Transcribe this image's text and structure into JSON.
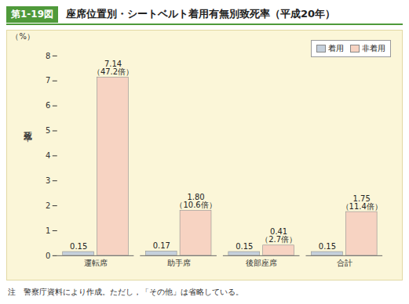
{
  "chart_data": {
    "type": "bar",
    "figure_number": "第1-19図",
    "title": "座席位置別・シートベルト着用有無別致死率（平成20年）",
    "ylabel": "致死率",
    "y_unit": "（%）",
    "categories": [
      "運転席",
      "助手席",
      "後部座席",
      "合計"
    ],
    "series": [
      {
        "name": "着用",
        "color": "#c5d0dc",
        "values": [
          0.15,
          0.17,
          0.15,
          0.15
        ]
      },
      {
        "name": "非着用",
        "color": "#f7d3c2",
        "values": [
          7.14,
          1.8,
          0.41,
          1.75
        ],
        "value_labels": [
          "7.14",
          "1.80",
          "0.41",
          "1.75"
        ],
        "annotations": [
          "（47.2倍）",
          "（10.6倍）",
          "（2.7倍）",
          "（11.4倍）"
        ]
      }
    ],
    "ylim": [
      0,
      8
    ],
    "yticks": [
      0,
      1,
      2,
      3,
      4,
      5,
      6,
      7,
      8
    ],
    "grid": false,
    "legend": "top-right",
    "data_labels": true,
    "note": "注　警察庁資料により作成。ただし，「その他」は省略している。"
  }
}
